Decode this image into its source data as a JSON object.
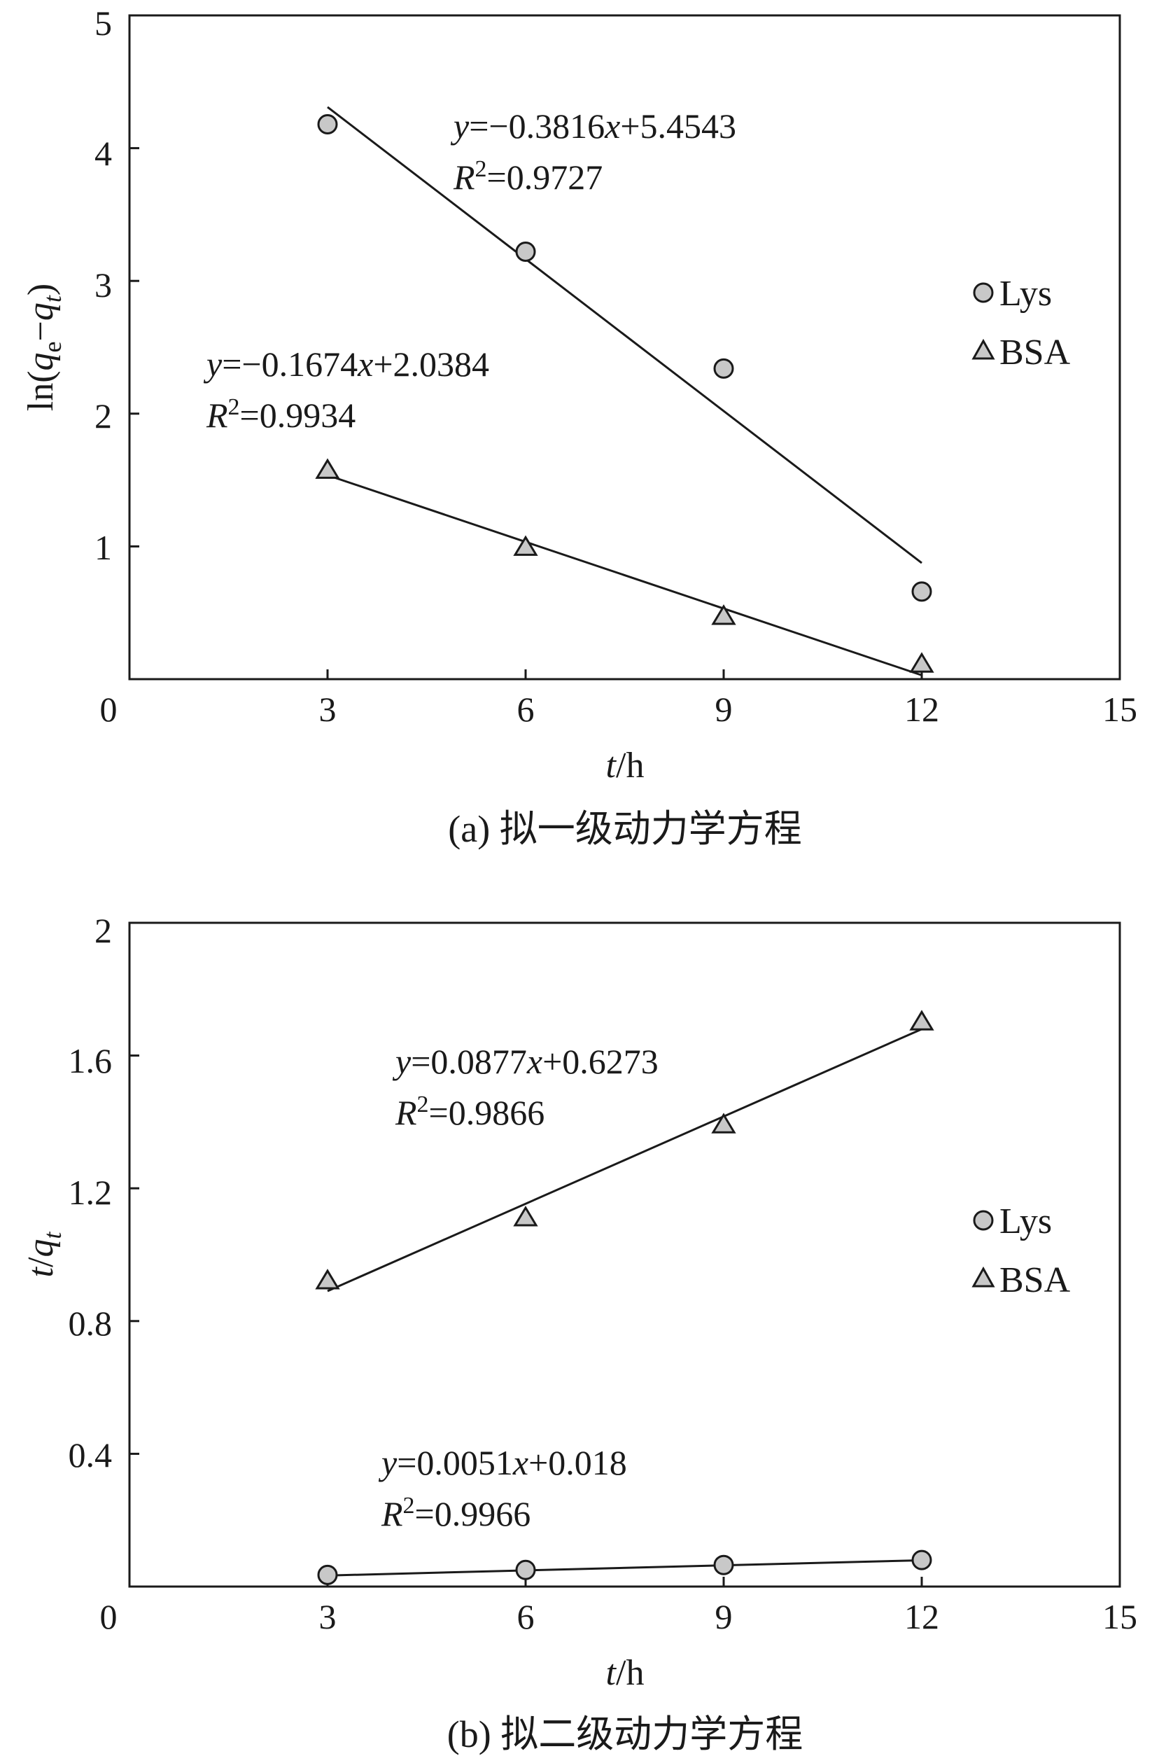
{
  "chart_data": [
    {
      "type": "scatter",
      "caption": "(a) 拟一级动力学方程",
      "xlabel": "t/h",
      "xlabel_parts": {
        "var": "t",
        "unit": "/h"
      },
      "ylabel": "ln(qe−qt)",
      "ylabel_parts": {
        "prefix": "ln(",
        "q": "q",
        "e": "e",
        "minus": "−",
        "q2": "q",
        "t": "t",
        "suffix": ")"
      },
      "xlim": [
        0,
        15
      ],
      "ylim": [
        0,
        5
      ],
      "xticks": [
        0,
        3,
        6,
        9,
        12,
        15
      ],
      "xtick_labels": [
        "0",
        "3",
        "6",
        "9",
        "12",
        "15"
      ],
      "yticks": [
        1,
        2,
        3,
        4,
        5
      ],
      "ytick_labels": [
        "1",
        "2",
        "3",
        "4",
        "5"
      ],
      "grid": false,
      "legend": {
        "position": "right",
        "entries": [
          {
            "label": "Lys",
            "marker": "circle"
          },
          {
            "label": "BSA",
            "marker": "triangle"
          }
        ]
      },
      "series": [
        {
          "name": "Lys",
          "marker": "circle",
          "color": "#c8c8c8",
          "x": [
            3,
            6,
            9,
            12
          ],
          "y": [
            4.18,
            3.22,
            2.34,
            0.66
          ],
          "fit": {
            "slope": -0.3816,
            "intercept": 5.4543
          },
          "equation": {
            "y": "y",
            "rhs": "=−0.3816",
            "x": "x",
            "tail": "+5.4543",
            "R": "R",
            "sup": "2",
            "r2": "=0.9727"
          }
        },
        {
          "name": "BSA",
          "marker": "triangle",
          "color": "#c8c8c8",
          "x": [
            3,
            6,
            9,
            12
          ],
          "y": [
            1.57,
            0.99,
            0.47,
            0.11
          ],
          "fit": {
            "slope": -0.1674,
            "intercept": 2.0384
          },
          "equation": {
            "y": "y",
            "rhs": "=−0.1674",
            "x": "x",
            "tail": "+2.0384",
            "R": "R",
            "sup": "2",
            "r2": "=0.9934"
          }
        }
      ]
    },
    {
      "type": "scatter",
      "caption": "(b) 拟二级动力学方程",
      "xlabel": "t/h",
      "xlabel_parts": {
        "var": "t",
        "unit": "/h"
      },
      "ylabel": "t/qt",
      "ylabel_parts": {
        "t": "t",
        "slash": "/",
        "q": "q",
        "sub": "t"
      },
      "xlim": [
        0,
        15
      ],
      "ylim": [
        0,
        2
      ],
      "xticks": [
        0,
        3,
        6,
        9,
        12,
        15
      ],
      "xtick_labels": [
        "0",
        "3",
        "6",
        "9",
        "12",
        "15"
      ],
      "yticks": [
        0.4,
        0.8,
        1.2,
        1.6,
        2.0
      ],
      "ytick_labels": [
        "0.4",
        "0.8",
        "1.2",
        "1.6",
        "2"
      ],
      "grid": false,
      "legend": {
        "position": "right",
        "entries": [
          {
            "label": "Lys",
            "marker": "circle"
          },
          {
            "label": "BSA",
            "marker": "triangle"
          }
        ]
      },
      "series": [
        {
          "name": "BSA",
          "marker": "triangle",
          "color": "#c8c8c8",
          "x": [
            3,
            6,
            9,
            12
          ],
          "y": [
            0.92,
            1.11,
            1.39,
            1.7
          ],
          "fit": {
            "slope": 0.0877,
            "intercept": 0.6273
          },
          "equation": {
            "y": "y",
            "rhs": "=0.0877",
            "x": "x",
            "tail": "+0.6273",
            "R": "R",
            "sup": "2",
            "r2": "=0.9866"
          }
        },
        {
          "name": "Lys",
          "marker": "circle",
          "color": "#c8c8c8",
          "x": [
            3,
            6,
            9,
            12
          ],
          "y": [
            0.035,
            0.05,
            0.065,
            0.08
          ],
          "fit": {
            "slope": 0.0051,
            "intercept": 0.018
          },
          "equation": {
            "y": "y",
            "rhs": "=0.0051",
            "x": "x",
            "tail": "+0.018",
            "R": "R",
            "sup": "2",
            "r2": "=0.9966"
          }
        }
      ]
    }
  ]
}
